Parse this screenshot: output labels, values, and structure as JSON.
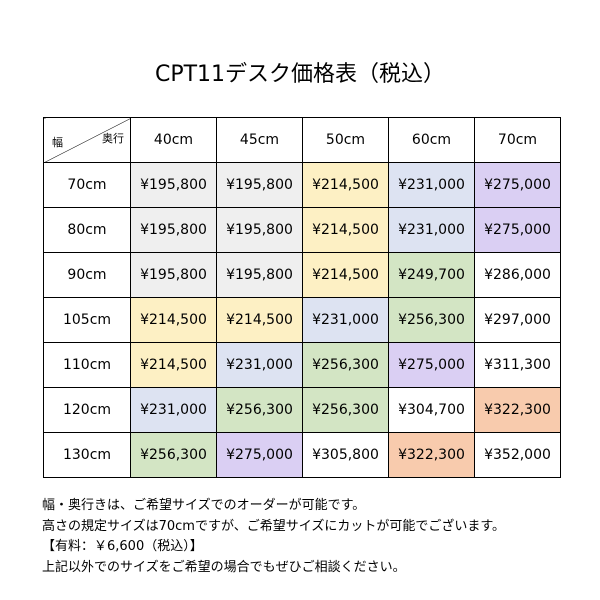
{
  "title": "CPT11デスク価格表（税込）",
  "table": {
    "corner": {
      "row_label": "幅",
      "column_label": "奥行"
    },
    "columns": [
      "40cm",
      "45cm",
      "50cm",
      "60cm",
      "70cm"
    ],
    "rows": [
      {
        "label": "70cm",
        "cells": [
          "¥195,800",
          "¥195,800",
          "¥214,500",
          "¥231,000",
          "¥275,000"
        ],
        "colors": [
          "#efefef",
          "#efefef",
          "#fdf0c4",
          "#dde3f2",
          "#dacff3"
        ]
      },
      {
        "label": "80cm",
        "cells": [
          "¥195,800",
          "¥195,800",
          "¥214,500",
          "¥231,000",
          "¥275,000"
        ],
        "colors": [
          "#efefef",
          "#efefef",
          "#fdf0c4",
          "#dde3f2",
          "#dacff3"
        ]
      },
      {
        "label": "90cm",
        "cells": [
          "¥195,800",
          "¥195,800",
          "¥214,500",
          "¥249,700",
          "¥286,000"
        ],
        "colors": [
          "#efefef",
          "#efefef",
          "#fdf0c4",
          "#d3e5c4",
          "#ffffff"
        ]
      },
      {
        "label": "105cm",
        "cells": [
          "¥214,500",
          "¥214,500",
          "¥231,000",
          "¥256,300",
          "¥297,000"
        ],
        "colors": [
          "#fdf0c4",
          "#fdf0c4",
          "#dde3f2",
          "#d3e5c4",
          "#ffffff"
        ]
      },
      {
        "label": "110cm",
        "cells": [
          "¥214,500",
          "¥231,000",
          "¥256,300",
          "¥275,000",
          "¥311,300"
        ],
        "colors": [
          "#fdf0c4",
          "#dde3f2",
          "#d3e5c4",
          "#dacff3",
          "#ffffff"
        ]
      },
      {
        "label": "120cm",
        "cells": [
          "¥231,000",
          "¥256,300",
          "¥256,300",
          "¥304,700",
          "¥322,300"
        ],
        "colors": [
          "#dde3f2",
          "#d3e5c4",
          "#d3e5c4",
          "#ffffff",
          "#f8cbad"
        ]
      },
      {
        "label": "130cm",
        "cells": [
          "¥256,300",
          "¥275,000",
          "¥305,800",
          "¥322,300",
          "¥352,000"
        ],
        "colors": [
          "#d3e5c4",
          "#dacff3",
          "#ffffff",
          "#f8cbad",
          "#ffffff"
        ]
      }
    ]
  },
  "notes": [
    "幅・奥行きは、ご希望サイズでのオーダーが可能です。",
    "高さの規定サイズは70cmですが、ご希望サイズにカットが可能でございます。",
    "【有料：￥6,600（税込）】",
    "上記以外でのサイズをご希望の場合でもぜひご相談ください。"
  ]
}
